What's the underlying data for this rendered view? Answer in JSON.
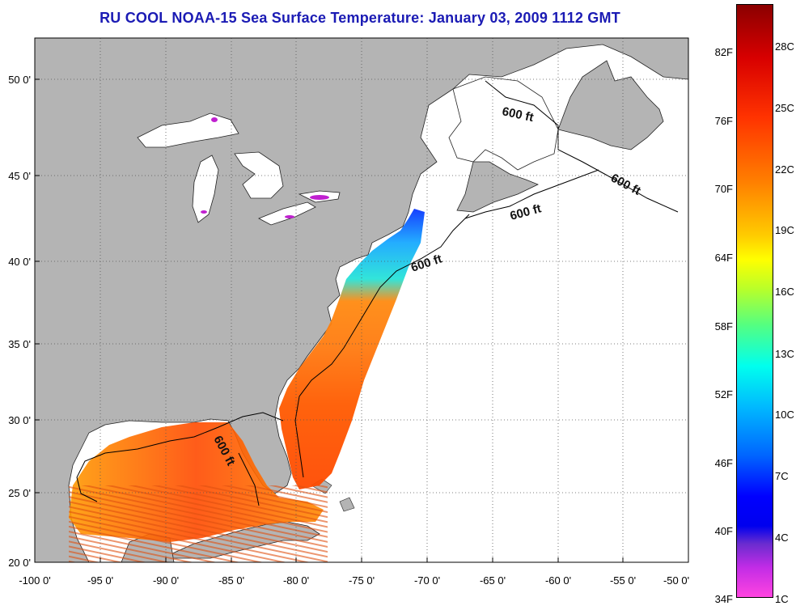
{
  "title": "RU COOL  NOAA-15  Sea Surface Temperature:  January 03, 2009 1112 GMT",
  "map": {
    "lon_range": [
      -100,
      -50
    ],
    "lat_range": [
      20,
      52.5
    ],
    "lon_ticks": [
      "-100 0'",
      "-95 0'",
      "-90 0'",
      "-85 0'",
      "-80 0'",
      "-75 0'",
      "-70 0'",
      "-65 0'",
      "-60 0'",
      "-55 0'",
      "-50 0'"
    ],
    "lat_ticks": [
      "50 0'",
      "45 0'",
      "40 0'",
      "35 0'",
      "30 0'",
      "25 0'",
      "20 0'"
    ],
    "contour_labels": [
      "600 ft",
      "600 ft",
      "600 ft",
      "600 ft",
      "600 ft"
    ],
    "colors": {
      "land": "#b4b4b4",
      "ocean": "#ffffff",
      "title": "#1b1bb4"
    }
  },
  "colorbar": {
    "f_labels": [
      "82F",
      "76F",
      "70F",
      "64F",
      "58F",
      "52F",
      "46F",
      "40F",
      "34F"
    ],
    "c_labels": [
      "28C",
      "25C",
      "22C",
      "19C",
      "16C",
      "13C",
      "10C",
      "7C",
      "4C",
      "1C"
    ]
  }
}
